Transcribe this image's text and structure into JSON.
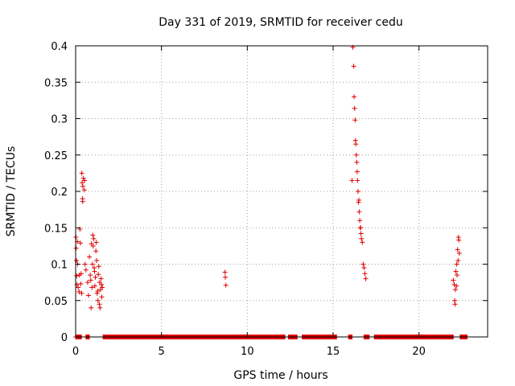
{
  "chart_data": {
    "type": "scatter",
    "title": "Day 331 of 2019, SRMTID for receiver cedu",
    "xlabel": "GPS time / hours",
    "ylabel": "SRMTID / TECUs",
    "xlim": [
      0,
      24
    ],
    "ylim": [
      0,
      0.4
    ],
    "xticks": [
      0,
      5,
      10,
      15,
      20
    ],
    "xtick_labels": [
      "0",
      "5",
      "10",
      "15",
      "20"
    ],
    "yticks": [
      0,
      0.05,
      0.1,
      0.15,
      0.2,
      0.25,
      0.3,
      0.35,
      0.4
    ],
    "ytick_labels": [
      "0",
      "0.05",
      "0.1",
      "0.15",
      "0.2",
      "0.25",
      "0.3",
      "0.35",
      "0.4"
    ],
    "grid": true,
    "marker": "+",
    "color": "#dd0000",
    "series": [
      {
        "name": "srmtid",
        "x": [
          0.02,
          0.03,
          0.05,
          0.06,
          0.08,
          0.1,
          0.12,
          0.15,
          0.2,
          0.22,
          0.25,
          0.28,
          0.3,
          0.32,
          0.35,
          0.36,
          0.38,
          0.4,
          0.41,
          0.42,
          0.45,
          0.5,
          0.52,
          0.55,
          0.6,
          0.7,
          0.75,
          0.8,
          0.85,
          0.88,
          0.9,
          0.92,
          0.95,
          0.98,
          1.0,
          1.02,
          1.05,
          1.08,
          1.1,
          1.12,
          1.15,
          1.18,
          1.2,
          1.22,
          1.25,
          1.28,
          1.3,
          1.32,
          1.35,
          1.38,
          1.4,
          1.42,
          1.45,
          1.48,
          1.5,
          1.52,
          1.55,
          8.7,
          8.72,
          8.75,
          16.1,
          16.15,
          16.2,
          16.22,
          16.25,
          16.28,
          16.3,
          16.32,
          16.35,
          16.38,
          16.4,
          16.42,
          16.45,
          16.48,
          16.5,
          16.52,
          16.55,
          16.58,
          16.6,
          16.62,
          16.65,
          16.7,
          16.75,
          16.8,
          16.85,
          16.9,
          22.0,
          22.05,
          22.08,
          22.1,
          22.12,
          22.15,
          22.18,
          22.2,
          22.22,
          22.25,
          22.28,
          22.3,
          22.32,
          22.35
        ],
        "y": [
          0.137,
          0.122,
          0.105,
          0.084,
          0.072,
          0.131,
          0.1,
          0.068,
          0.062,
          0.085,
          0.148,
          0.129,
          0.073,
          0.087,
          0.06,
          0.225,
          0.212,
          0.19,
          0.186,
          0.207,
          0.218,
          0.202,
          0.215,
          0.1,
          0.092,
          0.075,
          0.057,
          0.11,
          0.085,
          0.078,
          0.04,
          0.128,
          0.068,
          0.1,
          0.14,
          0.125,
          0.135,
          0.095,
          0.09,
          0.07,
          0.082,
          0.118,
          0.13,
          0.105,
          0.06,
          0.063,
          0.05,
          0.086,
          0.097,
          0.045,
          0.075,
          0.04,
          0.065,
          0.08,
          0.072,
          0.055,
          0.068,
          0.089,
          0.082,
          0.071,
          0.215,
          0.398,
          0.372,
          0.33,
          0.314,
          0.298,
          0.27,
          0.265,
          0.25,
          0.24,
          0.227,
          0.215,
          0.2,
          0.185,
          0.188,
          0.172,
          0.16,
          0.15,
          0.15,
          0.142,
          0.135,
          0.13,
          0.1,
          0.095,
          0.087,
          0.08,
          0.078,
          0.072,
          0.05,
          0.045,
          0.065,
          0.09,
          0.07,
          0.1,
          0.085,
          0.12,
          0.105,
          0.137,
          0.133,
          0.115
        ],
        "baseline_ranges": [
          [
            0.0,
            0.35
          ],
          [
            0.6,
            0.8
          ],
          [
            1.6,
            12.2
          ],
          [
            12.4,
            12.9
          ],
          [
            13.2,
            15.2
          ],
          [
            15.9,
            16.1
          ],
          [
            16.8,
            17.1
          ],
          [
            17.4,
            22.0
          ],
          [
            22.4,
            22.8
          ]
        ],
        "baseline_value": 0
      }
    ]
  }
}
